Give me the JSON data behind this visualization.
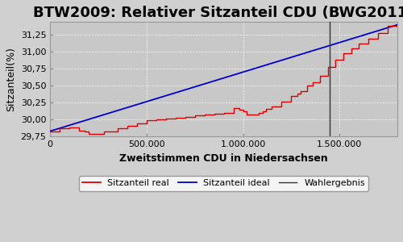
{
  "title": "BTW2009: Relativer Sitzanteil CDU (BWG2011)",
  "xlabel": "Zweitstimmen CDU in Niedersachsen",
  "ylabel": "Sitzanteil(%)",
  "x_max": 1800000,
  "x_min": 0,
  "y_min": 29.75,
  "y_max": 31.45,
  "wahlergebnis_x": 1450000,
  "yticks": [
    29.75,
    30.0,
    30.25,
    30.5,
    30.75,
    31.0,
    31.25
  ],
  "xticks": [
    0,
    500000,
    1000000,
    1500000
  ],
  "xtick_labels": [
    "0",
    "500.000",
    "1.000.000",
    "1.500.000"
  ],
  "ytick_labels": [
    "29,75",
    "30,00",
    "30,25",
    "30,50",
    "30,75",
    "31,00",
    "31,25"
  ],
  "bg_color": "#d0d0d0",
  "plot_bg_color": "#c8c8c8",
  "line_real_color": "#dd0000",
  "line_ideal_color": "#0000cc",
  "wahlergebnis_color": "#333333",
  "legend_labels": [
    "Sitzanteil real",
    "Sitzanteil ideal",
    "Wahlergebnis"
  ],
  "title_fontsize": 13,
  "label_fontsize": 9,
  "tick_fontsize": 8,
  "legend_fontsize": 8,
  "y_start": 29.83,
  "y_end": 31.4,
  "x_step_points": [
    0,
    50000,
    100000,
    150000,
    180000,
    200000,
    280000,
    350000,
    400000,
    450000,
    500000,
    550000,
    600000,
    650000,
    700000,
    750000,
    800000,
    850000,
    900000,
    950000,
    980000,
    1000000,
    1020000,
    1050000,
    1080000,
    1100000,
    1120000,
    1150000,
    1200000,
    1250000,
    1280000,
    1300000,
    1330000,
    1360000,
    1400000,
    1440000,
    1480000,
    1520000,
    1560000,
    1600000,
    1650000,
    1700000,
    1750000,
    1800000
  ],
  "y_step_values": [
    29.83,
    29.87,
    29.88,
    29.84,
    29.83,
    29.79,
    29.83,
    29.87,
    29.91,
    29.95,
    29.99,
    30.0,
    30.01,
    30.03,
    30.04,
    30.06,
    30.07,
    30.09,
    30.1,
    30.17,
    30.15,
    30.12,
    30.08,
    30.07,
    30.1,
    30.12,
    30.16,
    30.2,
    30.27,
    30.35,
    30.38,
    30.42,
    30.5,
    30.55,
    30.65,
    30.78,
    30.88,
    30.98,
    31.05,
    31.12,
    31.2,
    31.28,
    31.38,
    31.4
  ]
}
